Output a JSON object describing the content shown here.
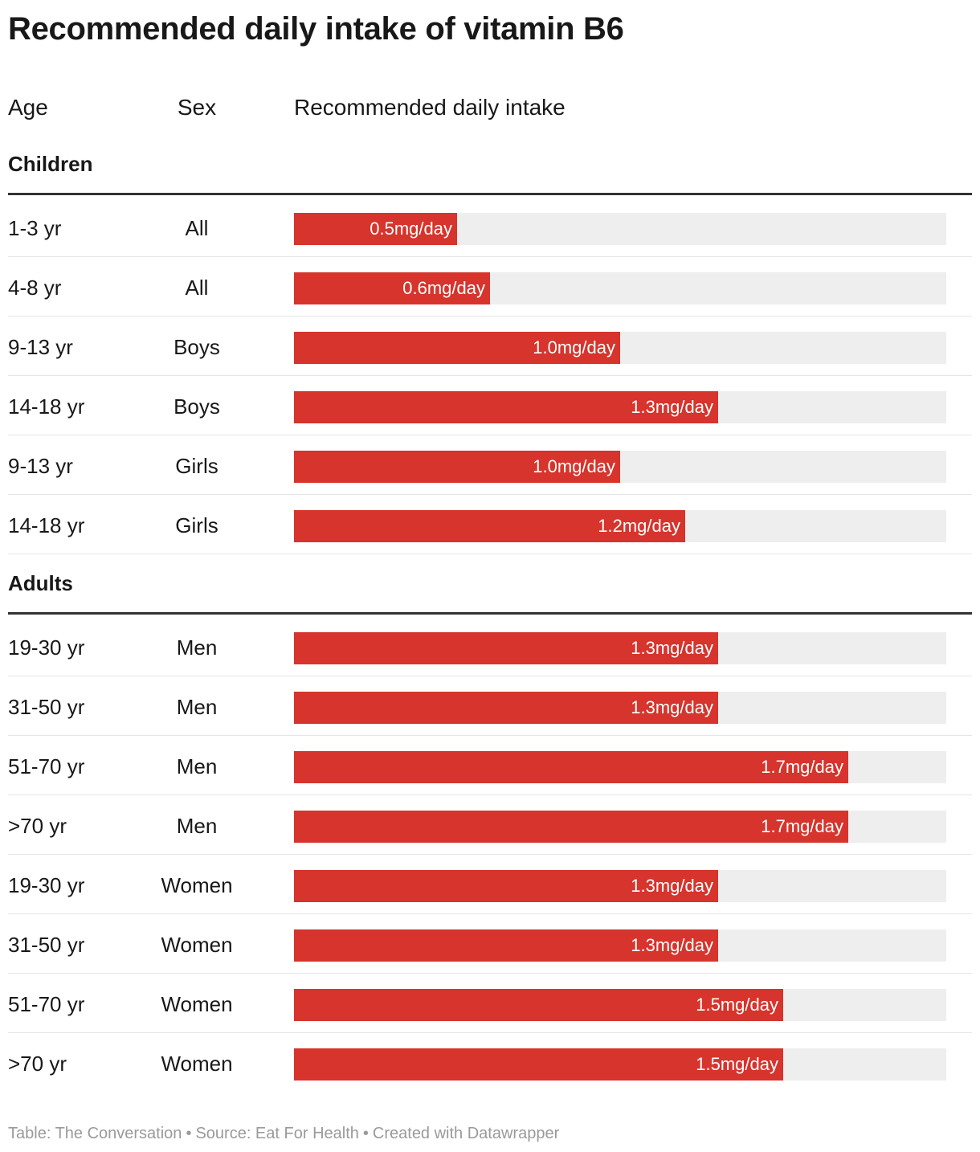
{
  "title": "Recommended daily intake of vitamin B6",
  "columns": {
    "age": "Age",
    "sex": "Sex",
    "intake": "Recommended daily intake"
  },
  "colors": {
    "bar": "#d6342c",
    "track": "#eeeeee",
    "rule": "#333333"
  },
  "footer": {
    "part1": "Table: The Conversation",
    "part2": "Source: Eat For Health",
    "part3": "Created with Datawrapper",
    "separator": "•"
  },
  "chart_data": {
    "type": "bar",
    "unit": "mg/day",
    "xlim": [
      0,
      2.0
    ],
    "groups": [
      {
        "name": "Children",
        "rows": [
          {
            "age": "1-3 yr",
            "sex": "All",
            "value": 0.5,
            "label": "0.5mg/day"
          },
          {
            "age": "4-8 yr",
            "sex": "All",
            "value": 0.6,
            "label": "0.6mg/day"
          },
          {
            "age": "9-13 yr",
            "sex": "Boys",
            "value": 1.0,
            "label": "1.0mg/day"
          },
          {
            "age": "14-18 yr",
            "sex": "Boys",
            "value": 1.3,
            "label": "1.3mg/day"
          },
          {
            "age": "9-13 yr",
            "sex": "Girls",
            "value": 1.0,
            "label": "1.0mg/day"
          },
          {
            "age": "14-18 yr",
            "sex": "Girls",
            "value": 1.2,
            "label": "1.2mg/day"
          }
        ]
      },
      {
        "name": "Adults",
        "rows": [
          {
            "age": "19-30 yr",
            "sex": "Men",
            "value": 1.3,
            "label": "1.3mg/day"
          },
          {
            "age": "31-50 yr",
            "sex": "Men",
            "value": 1.3,
            "label": "1.3mg/day"
          },
          {
            "age": "51-70 yr",
            "sex": "Men",
            "value": 1.7,
            "label": "1.7mg/day"
          },
          {
            "age": ">70 yr",
            "sex": "Men",
            "value": 1.7,
            "label": "1.7mg/day"
          },
          {
            "age": "19-30 yr",
            "sex": "Women",
            "value": 1.3,
            "label": "1.3mg/day"
          },
          {
            "age": "31-50 yr",
            "sex": "Women",
            "value": 1.3,
            "label": "1.3mg/day"
          },
          {
            "age": "51-70 yr",
            "sex": "Women",
            "value": 1.5,
            "label": "1.5mg/day"
          },
          {
            "age": ">70 yr",
            "sex": "Women",
            "value": 1.5,
            "label": "1.5mg/day"
          }
        ]
      }
    ]
  }
}
